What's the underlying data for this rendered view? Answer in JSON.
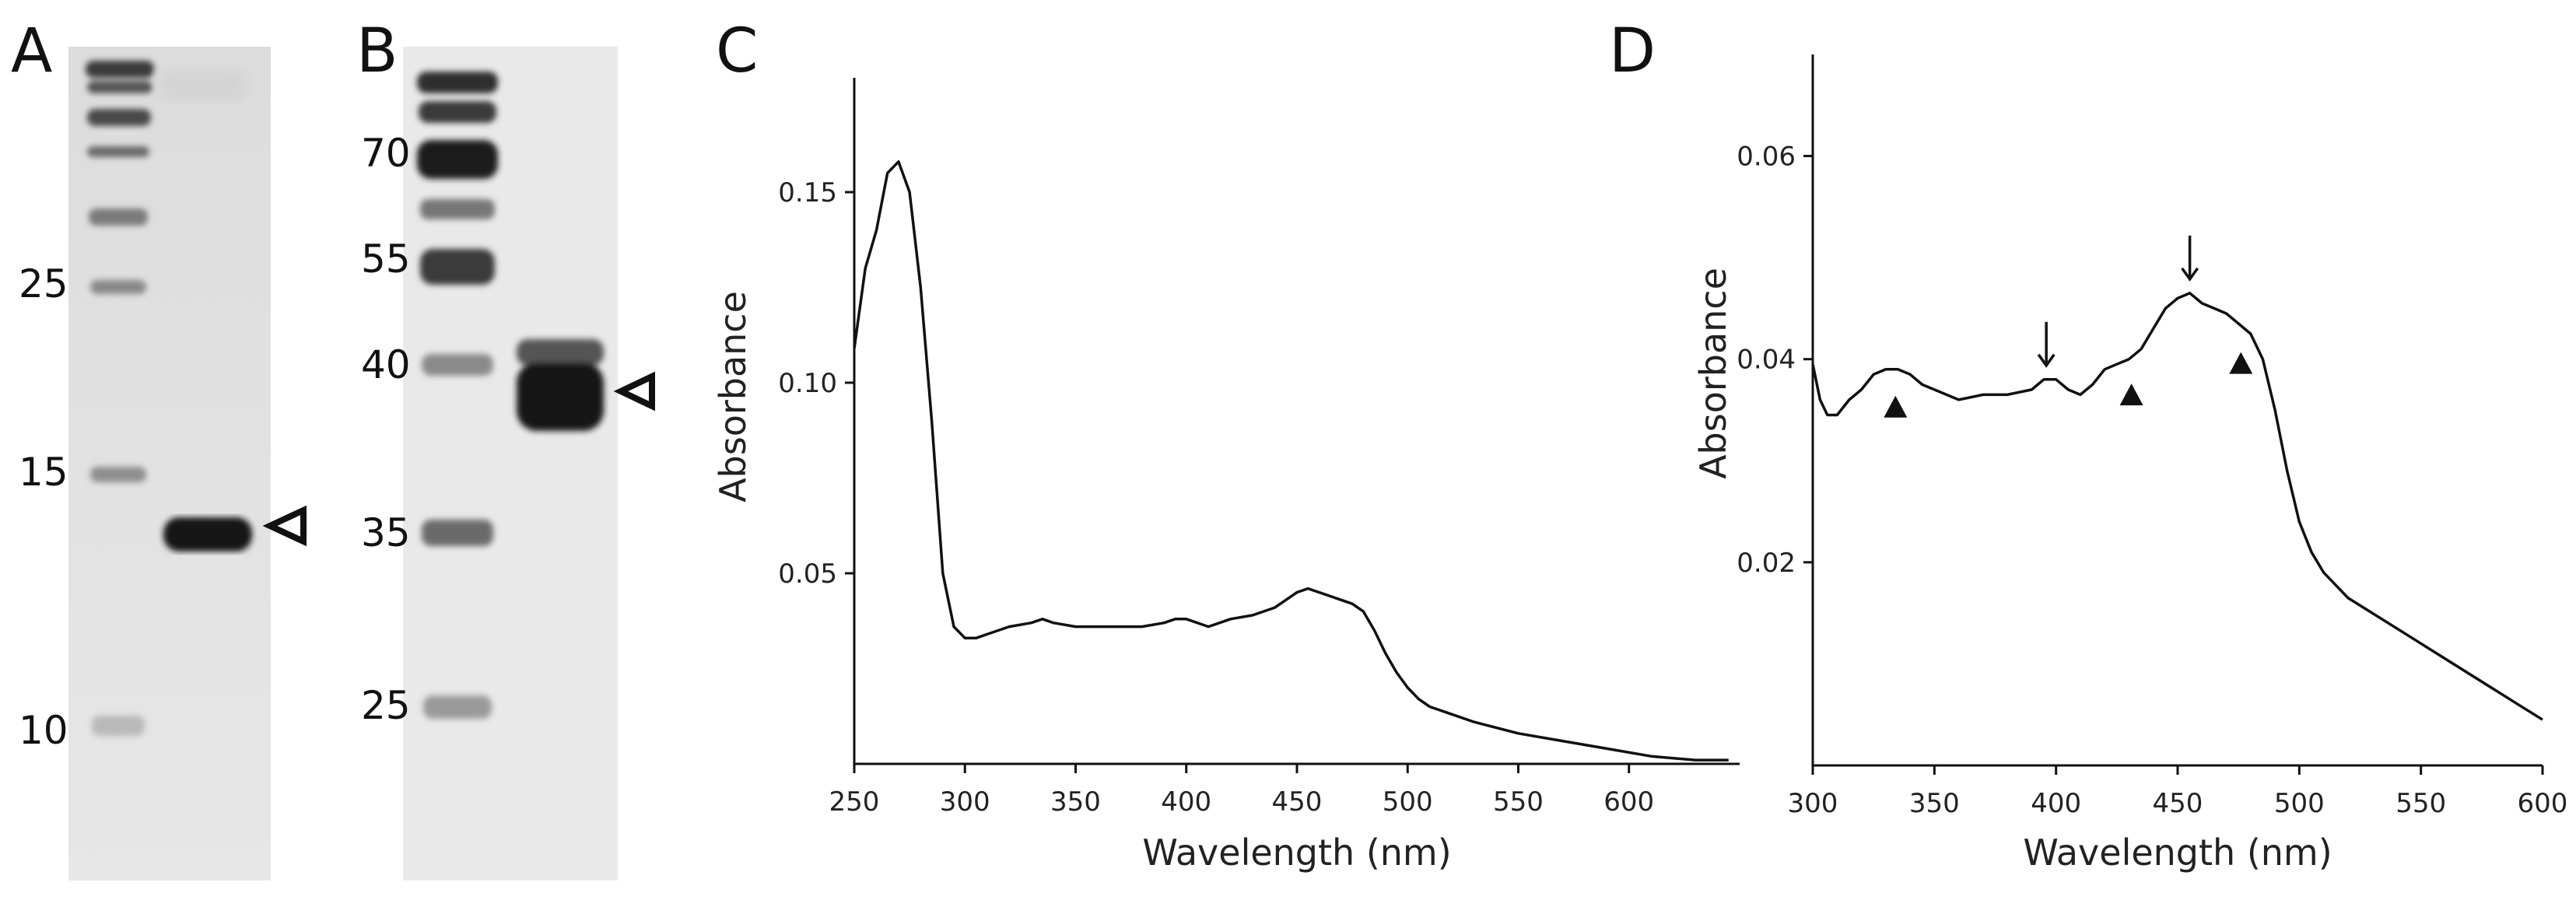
{
  "figure": {
    "panels": {
      "a": {
        "label": "A",
        "markers": [
          "25",
          "15",
          "10"
        ],
        "band_indicator": "open-arrowhead-icon"
      },
      "b": {
        "label": "B",
        "markers": [
          "70",
          "55",
          "40",
          "35",
          "25"
        ],
        "band_indicator": "open-arrowhead-icon"
      },
      "c": {
        "label": "C"
      },
      "d": {
        "label": "D"
      }
    }
  },
  "colors": {
    "ink": "#111111",
    "gel_background": "#e6e6e6",
    "band": "#1a1a1a"
  },
  "chart_data": [
    {
      "panel": "C",
      "type": "line",
      "title": "",
      "xlabel": "Wavelength (nm)",
      "ylabel": "Absorbance",
      "xlim": [
        250,
        650
      ],
      "ylim": [
        0,
        0.18
      ],
      "xticks": [
        250,
        300,
        350,
        400,
        450,
        500,
        550,
        600
      ],
      "yticks": [
        0.05,
        0.1,
        0.15
      ],
      "ytick_labels": [
        "0.05",
        "0.10",
        "0.15"
      ],
      "grid": false,
      "series": [
        {
          "name": "spectrum",
          "x": [
            250,
            255,
            260,
            265,
            270,
            275,
            280,
            285,
            290,
            295,
            300,
            305,
            310,
            320,
            330,
            335,
            340,
            350,
            360,
            370,
            380,
            390,
            395,
            400,
            410,
            420,
            430,
            440,
            445,
            450,
            455,
            460,
            465,
            470,
            475,
            480,
            485,
            490,
            495,
            500,
            505,
            510,
            520,
            530,
            550,
            570,
            590,
            610,
            630,
            645
          ],
          "y": [
            0.109,
            0.13,
            0.14,
            0.155,
            0.158,
            0.15,
            0.125,
            0.09,
            0.05,
            0.036,
            0.033,
            0.033,
            0.034,
            0.036,
            0.037,
            0.038,
            0.037,
            0.036,
            0.036,
            0.036,
            0.036,
            0.037,
            0.038,
            0.038,
            0.036,
            0.038,
            0.039,
            0.041,
            0.043,
            0.045,
            0.046,
            0.045,
            0.044,
            0.043,
            0.042,
            0.04,
            0.035,
            0.029,
            0.024,
            0.02,
            0.017,
            0.015,
            0.013,
            0.011,
            0.008,
            0.006,
            0.004,
            0.002,
            0.001,
            0.001
          ]
        }
      ]
    },
    {
      "panel": "D",
      "type": "line",
      "title": "",
      "xlabel": "Wavelength (nm)",
      "ylabel": "Absorbance",
      "xlim": [
        300,
        600
      ],
      "ylim": [
        0,
        0.07
      ],
      "xticks": [
        300,
        350,
        400,
        450,
        500,
        550,
        600
      ],
      "yticks": [
        0.02,
        0.04,
        0.06
      ],
      "ytick_labels": [
        "0.02",
        "0.04",
        "0.06"
      ],
      "grid": false,
      "series": [
        {
          "name": "spectrum",
          "x": [
            300,
            303,
            306,
            310,
            315,
            320,
            325,
            330,
            335,
            340,
            345,
            350,
            360,
            370,
            380,
            390,
            395,
            400,
            405,
            410,
            415,
            420,
            425,
            430,
            435,
            440,
            445,
            450,
            455,
            460,
            465,
            470,
            475,
            480,
            485,
            490,
            495,
            500,
            505,
            510,
            520,
            530,
            540,
            550,
            560,
            570,
            580,
            590,
            600
          ],
          "y": [
            0.0395,
            0.036,
            0.0345,
            0.0345,
            0.036,
            0.037,
            0.0385,
            0.039,
            0.039,
            0.0385,
            0.0375,
            0.037,
            0.036,
            0.0365,
            0.0365,
            0.037,
            0.038,
            0.038,
            0.037,
            0.0365,
            0.0375,
            0.039,
            0.0395,
            0.04,
            0.041,
            0.043,
            0.045,
            0.046,
            0.0465,
            0.0455,
            0.045,
            0.0445,
            0.0435,
            0.0425,
            0.04,
            0.035,
            0.029,
            0.024,
            0.021,
            0.019,
            0.0165,
            0.015,
            0.0135,
            0.012,
            0.0105,
            0.009,
            0.0075,
            0.006,
            0.0045
          ]
        }
      ],
      "annotations": {
        "arrows_nm": [
          396,
          455
        ],
        "arrow_icon": "down-arrow-icon",
        "triangles_nm": [
          334,
          431,
          476
        ],
        "triangle_icon": "filled-triangle-icon"
      }
    }
  ]
}
